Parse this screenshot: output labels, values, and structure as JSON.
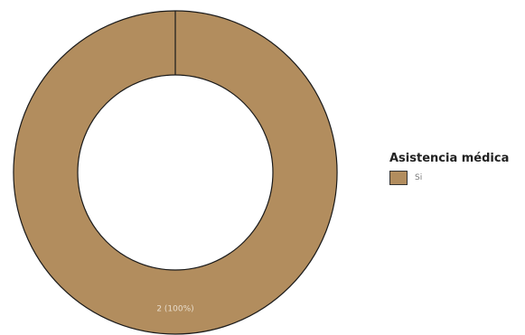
{
  "chart_data": {
    "type": "pie",
    "donut": true,
    "categories": [
      "Si"
    ],
    "values": [
      2
    ],
    "data_labels": [
      "2 (100%)"
    ],
    "legend_title": "Asistencia médica",
    "legend_position": "right",
    "colors": [
      "#b28d5e"
    ],
    "stroke_color": "#1a1a1a",
    "label_color": "#e8dccb"
  }
}
